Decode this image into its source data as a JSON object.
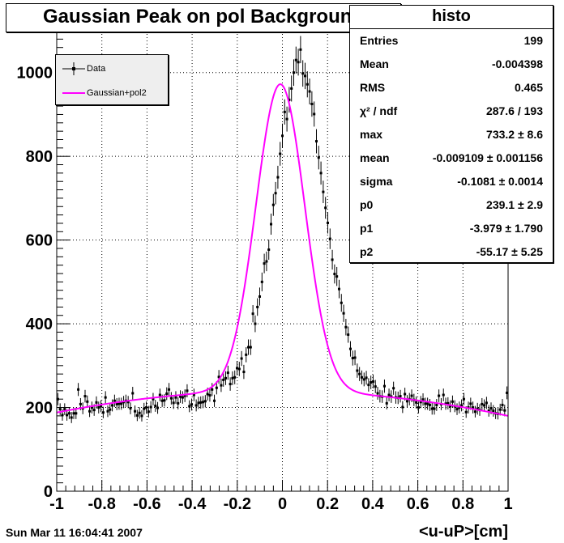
{
  "title": "Gaussian Peak on pol Background",
  "stats": {
    "name": "histo",
    "rows": [
      {
        "key": "Entries",
        "value": "199"
      },
      {
        "key": "Mean",
        "value": "-0.004398"
      },
      {
        "key": "RMS",
        "value": "0.465"
      },
      {
        "key": "χ² / ndf",
        "value": "287.6 / 193"
      },
      {
        "key": "max",
        "value": "733.2 ± 8.6"
      },
      {
        "key": "mean",
        "value": "-0.009109 ± 0.001156"
      },
      {
        "key": "sigma",
        "value": "-0.1081 ± 0.0014"
      },
      {
        "key": "p0",
        "value": "239.1 ± 2.9"
      },
      {
        "key": "p1",
        "value": "-3.979 ± 1.790"
      },
      {
        "key": "p2",
        "value": "-55.17 ± 5.25"
      }
    ]
  },
  "legend": {
    "entries": [
      {
        "label": "Data",
        "color": "#000000"
      },
      {
        "label": "Gaussian+pol2",
        "color": "#ff00ff"
      }
    ],
    "placement": "top-left"
  },
  "date_stamp": "Sun Mar 11 16:04:41 2007",
  "chart_data": {
    "type": "scatter",
    "title": "Gaussian Peak on pol Background",
    "xlabel": "<u-uP>[cm]",
    "ylabel": "",
    "xlim": [
      -1,
      1
    ],
    "ylim": [
      0,
      1100
    ],
    "grid": true,
    "x_ticks": [
      -1,
      -0.8,
      -0.6,
      -0.4,
      -0.2,
      0,
      0.2,
      0.4,
      0.6,
      0.8,
      1
    ],
    "x_tick_labels": [
      "-1",
      "-0.8",
      "-0.6",
      "-0.4",
      "-0.2",
      "0",
      "0.2",
      "0.4",
      "0.6",
      "0.8",
      "1"
    ],
    "y_ticks": [
      0,
      200,
      400,
      600,
      800,
      1000
    ],
    "y_tick_labels": [
      "0",
      "200",
      "400",
      "600",
      "800",
      "1000"
    ],
    "series": [
      {
        "name": "Data",
        "marker": "point-with-error-bars",
        "color": "#000000",
        "bins": 199,
        "x_range": [
          -1,
          1
        ],
        "values": [
          220,
          196,
          182,
          196,
          182,
          186,
          176,
          186,
          186,
          243,
          208,
          198,
          227,
          214,
          191,
          200,
          194,
          212,
          200,
          203,
          188,
          224,
          191,
          195,
          205,
          216,
          208,
          209,
          209,
          213,
          216,
          213,
          198,
          234,
          191,
          181,
          187,
          180,
          197,
          200,
          190,
          201,
          220,
          204,
          199,
          230,
          216,
          217,
          233,
          243,
          222,
          211,
          224,
          210,
          226,
          224,
          228,
          240,
          203,
          207,
          230,
          205,
          211,
          212,
          213,
          215,
          232,
          229,
          243,
          216,
          247,
          273,
          253,
          266,
          270,
          283,
          256,
          270,
          272,
          294,
          292,
          317,
          285,
          326,
          344,
          344,
          424,
          400,
          440,
          465,
          500,
          544,
          549,
          577,
          638,
          684,
          712,
          750,
          806,
          849,
          906,
          889,
          935,
          962,
          1000,
          1030,
          1025,
          1055,
          998,
          992,
          972,
          955,
          925,
          901,
          836,
          797,
          760,
          715,
          677,
          641,
          603,
          553,
          519,
          513,
          483,
          450,
          425,
          392,
          374,
          340,
          318,
          319,
          288,
          280,
          272,
          267,
          271,
          254,
          260,
          262,
          250,
          234,
          227,
          226,
          251,
          210,
          230,
          226,
          246,
          224,
          223,
          227,
          201,
          232,
          215,
          220,
          228,
          218,
          212,
          200,
          213,
          219,
          209,
          209,
          206,
          197,
          197,
          206,
          228,
          208,
          230,
          209,
          210,
          203,
          214,
          203,
          196,
          200,
          205,
          220,
          189,
          200,
          209,
          200,
          190,
          197,
          194,
          208,
          205,
          211,
          192,
          198,
          192,
          186,
          185,
          195,
          206,
          193,
          235
        ]
      },
      {
        "name": "Gaussian+pol2",
        "type": "line",
        "color": "#ff00ff",
        "function": "max*exp(-0.5*((x-mean)/sigma)^2) + p0 + p1*x + p2*x^2",
        "params": {
          "max": 733.2,
          "mean": -0.009109,
          "sigma": -0.1081,
          "p0": 239.1,
          "p1": -3.979,
          "p2": -55.17
        }
      }
    ]
  }
}
